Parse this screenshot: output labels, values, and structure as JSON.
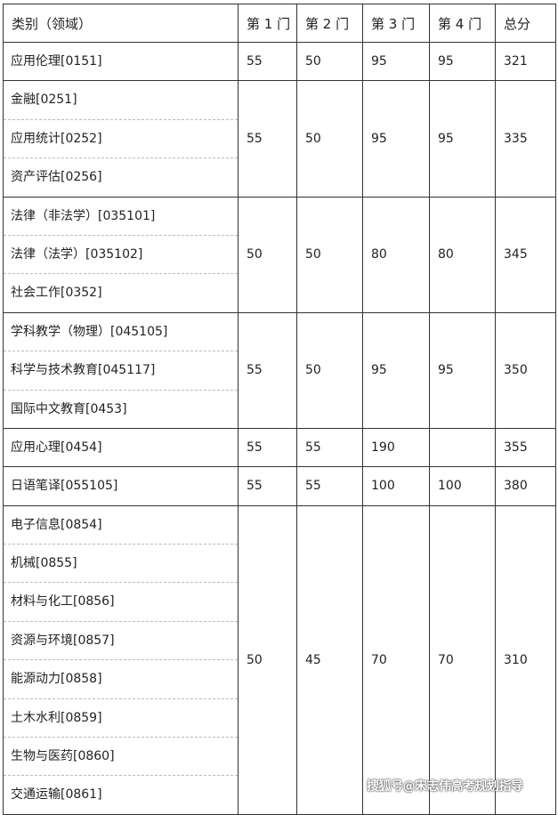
{
  "headers": [
    "类别（领域）",
    "第 1 门",
    "第 2 门",
    "第 3 门",
    "第 4 门",
    "总分"
  ],
  "rows": [
    {
      "categories": [
        "应用伦理[0151]"
      ],
      "scores": [
        "55",
        "50",
        "95",
        "95",
        "321"
      ]
    },
    {
      "categories": [
        "金融[0251]",
        "应用统计[0252]",
        "资产评估[0256]"
      ],
      "scores": [
        "55",
        "50",
        "95",
        "95",
        "335"
      ]
    },
    {
      "categories": [
        "法律（非法学）[035101]",
        "法律（法学）[035102]",
        "社会工作[0352]"
      ],
      "scores": [
        "50",
        "50",
        "80",
        "80",
        "345"
      ]
    },
    {
      "categories": [
        "学科教学（物理）[045105]",
        "科学与技术教育[045117]",
        "国际中文教育[0453]"
      ],
      "scores": [
        "55",
        "50",
        "95",
        "95",
        "350"
      ]
    },
    {
      "categories": [
        "应用心理[0454]"
      ],
      "scores": [
        "55",
        "55",
        "190",
        "",
        "355"
      ]
    },
    {
      "categories": [
        "日语笔译[055105]"
      ],
      "scores": [
        "55",
        "55",
        "100",
        "100",
        "380"
      ]
    },
    {
      "categories": [
        "电子信息[0854]",
        "机械[0855]",
        "材料与化工[0856]",
        "资源与环境[0857]",
        "能源动力[0858]",
        "土木水利[0859]",
        "生物与医药[0860]",
        "交通运输[0861]"
      ],
      "scores": [
        "50",
        "45",
        "70",
        "70",
        "310"
      ]
    }
  ],
  "watermark": "搜狐号@宋志伟高考规划指导"
}
